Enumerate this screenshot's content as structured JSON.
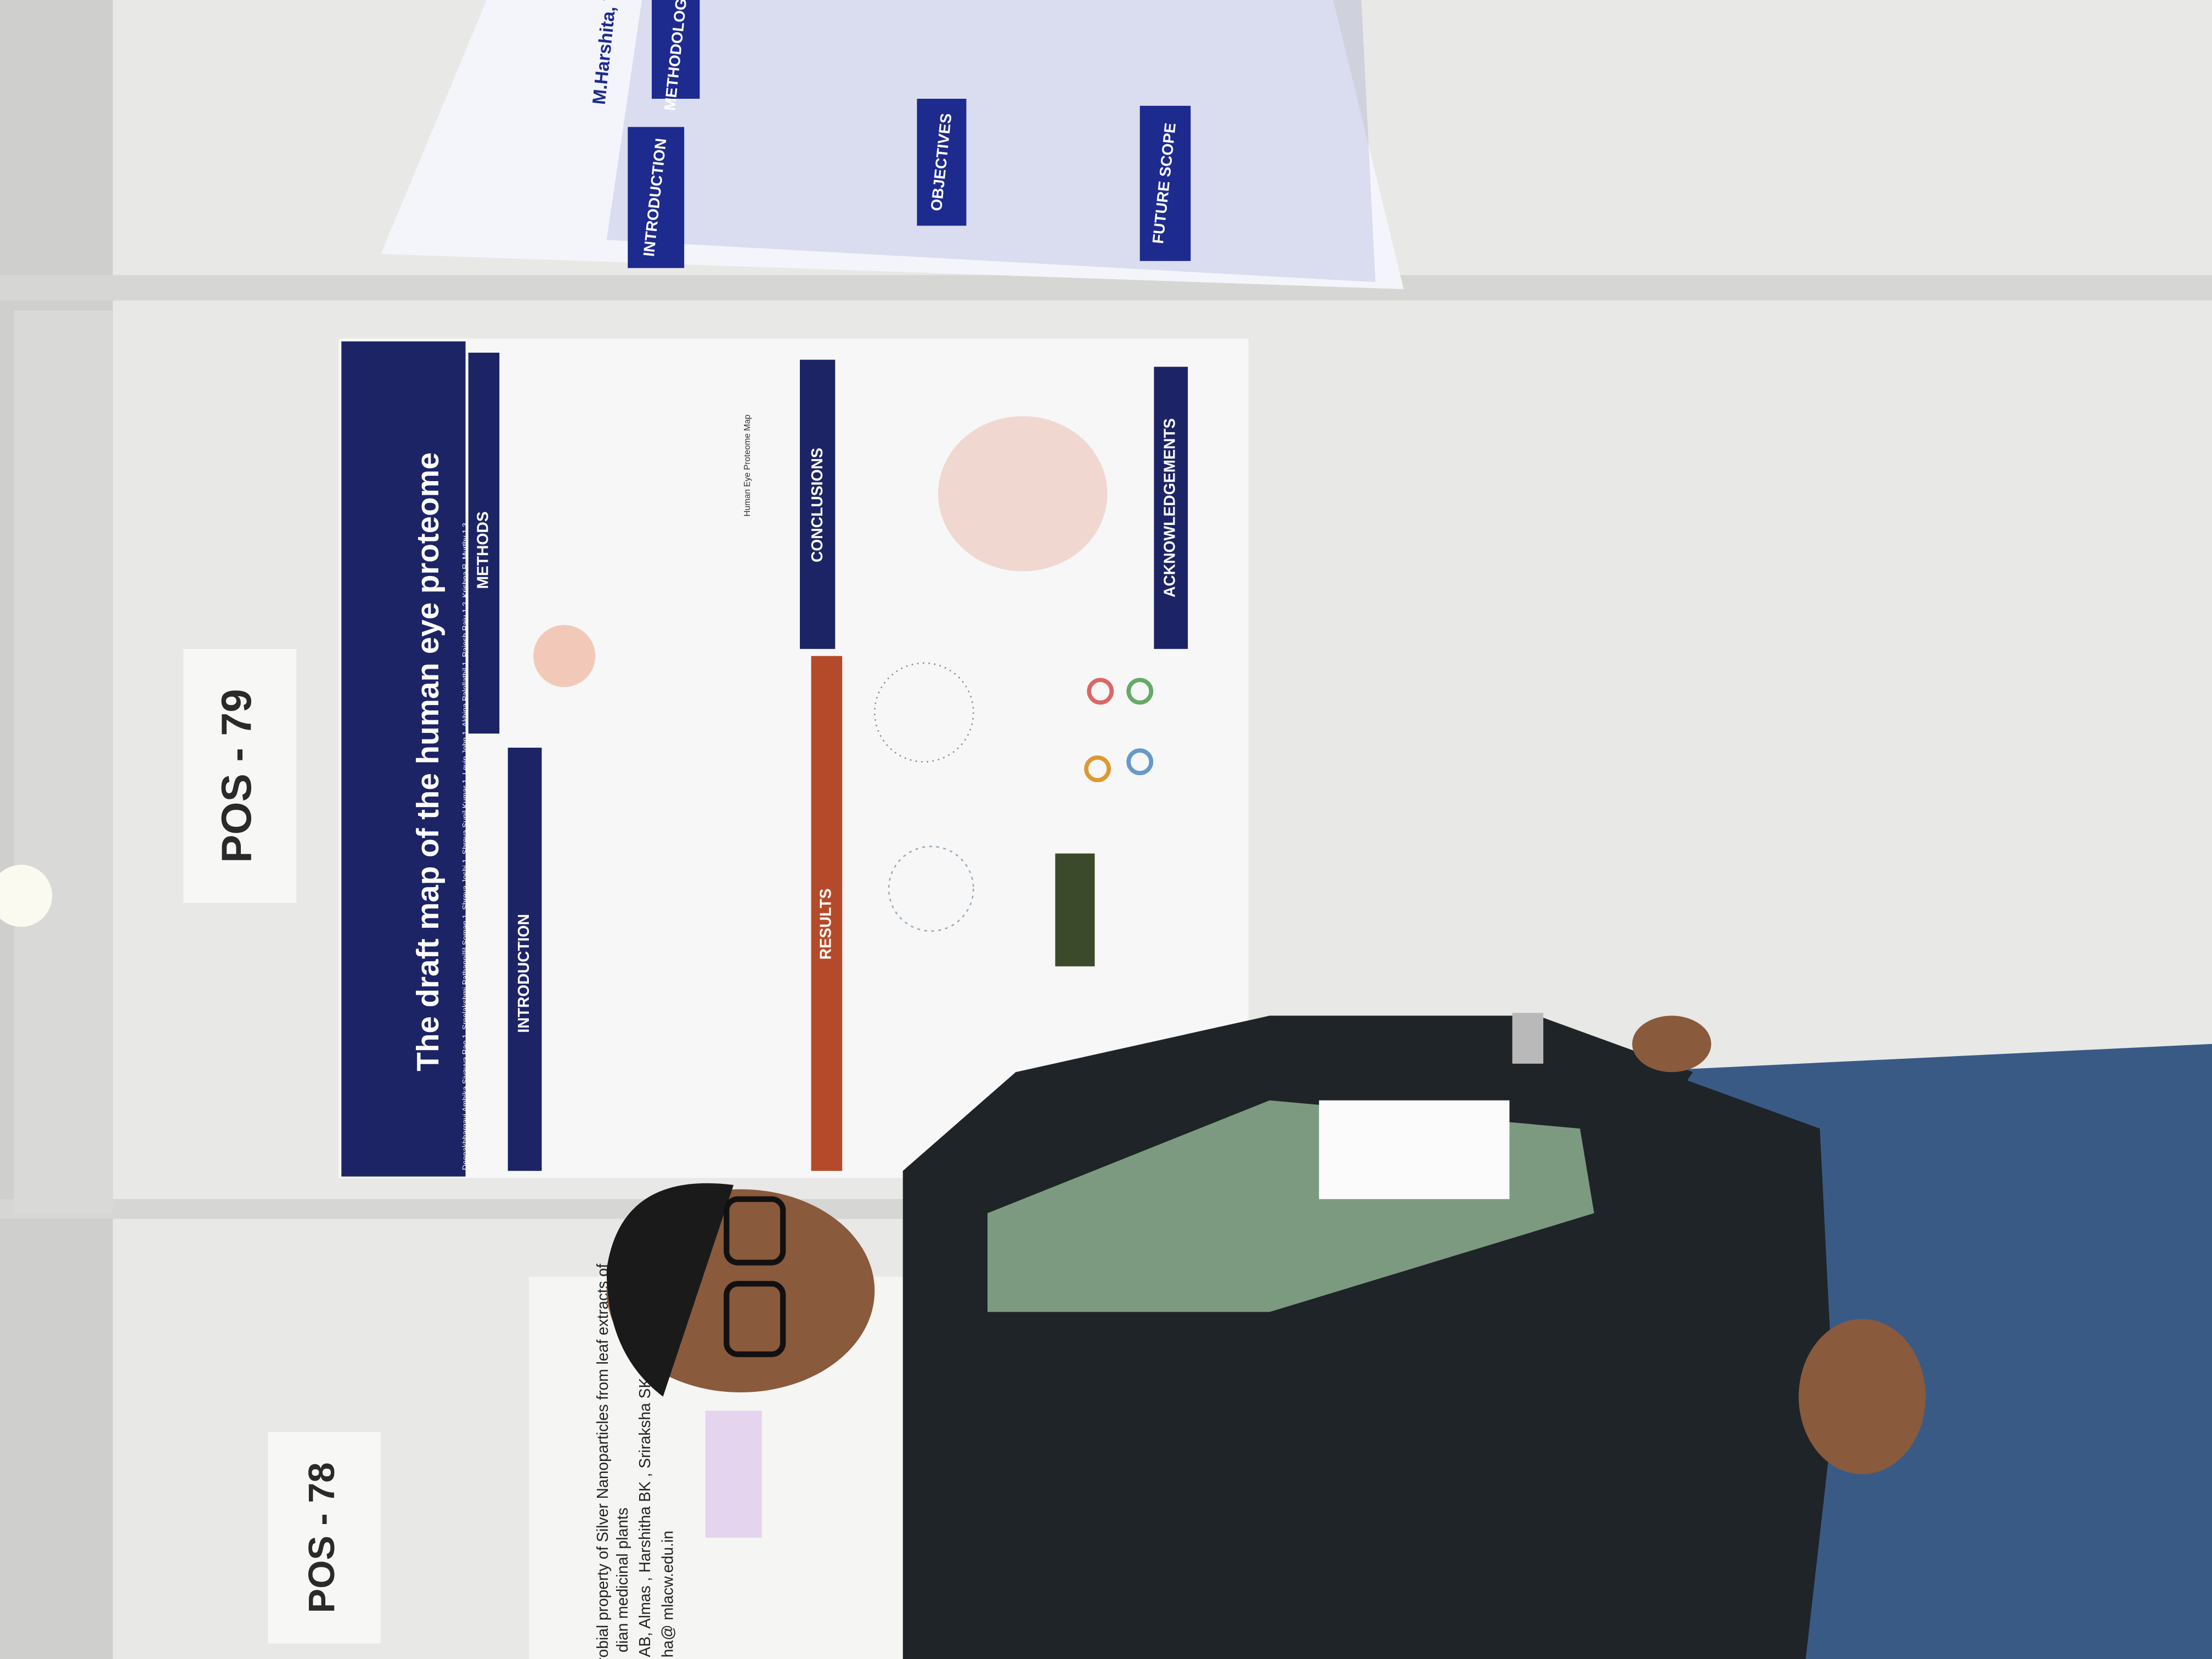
{
  "signs": {
    "upper": "POS - 79",
    "lower": "POS - 78"
  },
  "main_poster": {
    "title": "The draft map of the human eye proteome",
    "authors": "Deepakbhargavi Ambika Sivayya Rao 1, Sreelakshmi Pathappillil Soman 1, Shreya Joshi 1, Shreya Sunil Kumar 1, Levin John 1, Akhina Palollathil 1, Rajesh Raju 1,2, Krishna R. Murthy 1,3",
    "sections": [
      "INTRODUCTION",
      "METHODS",
      "RESULTS",
      "CONCLUSIONS",
      "ACKNOWLEDGEMENTS"
    ],
    "figure_label": "Human Eye Proteome Map"
  },
  "top_poster": {
    "sections": [
      "INTRODUCTION",
      "OBJECTIVES",
      "FUTURE SCOPE",
      "METHODOLOGY"
    ],
    "author_fragment": "M.Harshita, Va"
  },
  "lower_poster": {
    "lines": [
      "crobial property of Silver Nanoparticles from leaf extracts of",
      "dian medicinal plants",
      "n AB, Almas , Harshitha BK , Sriraksha SK",
      "ha@ mlacw.edu.in"
    ]
  }
}
